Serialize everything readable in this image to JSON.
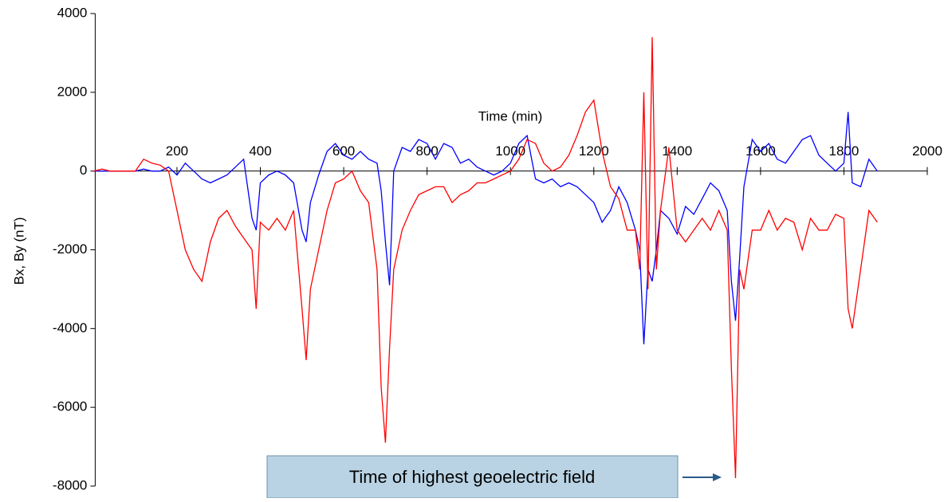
{
  "chart_data": {
    "type": "line",
    "x_label": "Time (min)",
    "y_label": "Bx, By (nT)",
    "x": [
      0,
      20,
      40,
      60,
      80,
      100,
      120,
      140,
      160,
      180,
      200,
      220,
      240,
      260,
      280,
      300,
      320,
      340,
      360,
      380,
      390,
      400,
      420,
      440,
      460,
      480,
      500,
      510,
      520,
      540,
      560,
      580,
      600,
      620,
      640,
      660,
      680,
      690,
      700,
      710,
      720,
      740,
      760,
      780,
      800,
      820,
      840,
      860,
      880,
      900,
      920,
      940,
      960,
      980,
      1000,
      1020,
      1040,
      1060,
      1080,
      1100,
      1120,
      1140,
      1160,
      1180,
      1200,
      1220,
      1240,
      1260,
      1280,
      1300,
      1310,
      1320,
      1330,
      1340,
      1350,
      1360,
      1380,
      1400,
      1420,
      1440,
      1460,
      1480,
      1500,
      1520,
      1530,
      1540,
      1550,
      1560,
      1580,
      1600,
      1620,
      1640,
      1660,
      1680,
      1700,
      1720,
      1740,
      1760,
      1780,
      1800,
      1810,
      1820,
      1840,
      1860,
      1880
    ],
    "series": [
      {
        "color": "#ff0000",
        "values": [
          0,
          50,
          0,
          0,
          0,
          0,
          300,
          200,
          150,
          0,
          -1000,
          -2000,
          -2500,
          -2800,
          -1800,
          -1200,
          -1000,
          -1400,
          -1700,
          -2000,
          -3500,
          -1300,
          -1500,
          -1200,
          -1500,
          -1000,
          -3500,
          -4800,
          -3000,
          -2000,
          -1000,
          -300,
          -200,
          0,
          -500,
          -800,
          -2500,
          -5500,
          -6900,
          -4500,
          -2500,
          -1500,
          -1000,
          -600,
          -500,
          -400,
          -400,
          -800,
          -600,
          -500,
          -300,
          -300,
          -200,
          -100,
          0,
          300,
          800,
          700,
          200,
          0,
          100,
          400,
          900,
          1500,
          1800,
          500,
          -400,
          -700,
          -1500,
          -1500,
          -2500,
          2000,
          -3000,
          3400,
          -2500,
          -1000,
          600,
          -1500,
          -1800,
          -1500,
          -1200,
          -1500,
          -1000,
          -1500,
          -5000,
          -7800,
          -2500,
          -3000,
          -1500,
          -1500,
          -1000,
          -1500,
          -1200,
          -1300,
          -2000,
          -1200,
          -1500,
          -1500,
          -1100,
          -1200,
          -3500,
          -4000,
          -2500,
          -1000,
          -1300
        ]
      },
      {
        "color": "#0000ff",
        "values": [
          0,
          0,
          0,
          0,
          0,
          0,
          50,
          0,
          0,
          100,
          -100,
          200,
          0,
          -200,
          -300,
          -200,
          -100,
          100,
          300,
          -1200,
          -1500,
          -300,
          -100,
          0,
          -100,
          -300,
          -1500,
          -1800,
          -800,
          -100,
          500,
          700,
          400,
          300,
          500,
          300,
          200,
          -500,
          -1800,
          -2900,
          0,
          600,
          500,
          800,
          700,
          300,
          700,
          600,
          200,
          300,
          100,
          0,
          -100,
          0,
          200,
          700,
          900,
          -200,
          -300,
          -200,
          -400,
          -300,
          -400,
          -600,
          -800,
          -1300,
          -1000,
          -400,
          -800,
          -1500,
          -2000,
          -4400,
          -2500,
          -2800,
          -2000,
          -1000,
          -1200,
          -1600,
          -900,
          -1100,
          -700,
          -300,
          -500,
          -1000,
          -2800,
          -3800,
          -2200,
          -400,
          800,
          500,
          700,
          300,
          200,
          500,
          800,
          900,
          400,
          200,
          0,
          200,
          1500,
          -300,
          -400,
          300,
          0
        ]
      }
    ],
    "xlim": [
      0,
      2000
    ],
    "xticks": [
      200,
      400,
      600,
      800,
      1000,
      1200,
      1400,
      1600,
      1800,
      2000
    ],
    "ylim": [
      -8000,
      4000
    ],
    "yticks": [
      -8000,
      -6000,
      -4000,
      -2000,
      0,
      2000,
      4000
    ],
    "annotation": "Time of highest geoelectric field"
  }
}
